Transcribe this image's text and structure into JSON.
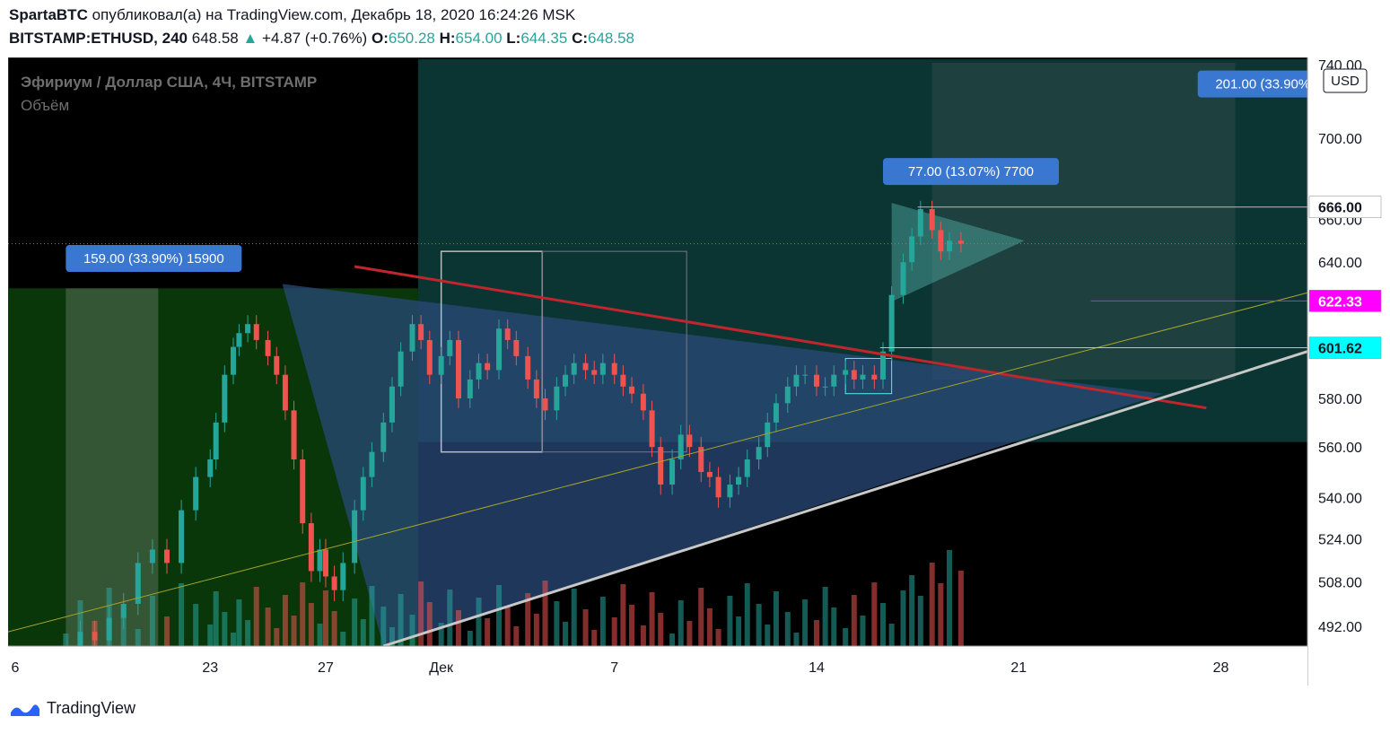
{
  "header": {
    "author": "SpartaBTC",
    "published_text": "опубликовал(а) на TradingView.com, Декабрь 18, 2020 16:24:26 MSK",
    "symbol": "BITSTAMP:ETHUSD, 240",
    "last": "648.58",
    "change_arrow": "▲",
    "change": "+4.87 (+0.76%)",
    "o_label": "O:",
    "o_value": "650.28",
    "h_label": "H:",
    "h_value": "654.00",
    "l_label": "L:",
    "l_value": "644.35",
    "c_label": "C:",
    "c_value": "648.58"
  },
  "legend": {
    "title": "Эфириум / Доллар США, 4Ч, BITSTAMP",
    "volume": "Объём"
  },
  "currency_label": "USD",
  "price_badges": [
    {
      "text": "666.00",
      "value": 666.0,
      "bg": "#ffffff",
      "fg": "#131722"
    },
    {
      "text": "622.33",
      "value": 622.33,
      "bg": "#ff00ff",
      "fg": "#ffffff"
    },
    {
      "text": "601.62",
      "value": 601.62,
      "bg": "#00ffff",
      "fg": "#131722"
    }
  ],
  "measure_labels": [
    {
      "text": "159.00 (33.90%) 15900"
    },
    {
      "text": "77.00 (13.07%) 7700"
    },
    {
      "text": "201.00 (33.90%) 20100"
    }
  ],
  "colors": {
    "background": "#000000",
    "up": "#26a69a",
    "down": "#ef5350",
    "label_bg": "#3a77d1",
    "trend_red": "#c0262d",
    "trend_white": "#c8c8c8",
    "triangle": "#2a4a7a"
  },
  "footer": {
    "brand": "TradingView"
  },
  "chart_data": {
    "type": "candlestick",
    "title": "Эфириум / Доллар США, 4Ч, BITSTAMP",
    "y_ticks": [
      "700.00",
      "660.00",
      "640.00",
      "580.00",
      "560.00",
      "540.00",
      "524.00",
      "508.00",
      "492.00"
    ],
    "y_tick_values": [
      700,
      660,
      640,
      580,
      560,
      540,
      524,
      508,
      492
    ],
    "y_top_partial": "740.00",
    "x_ticks": [
      "6",
      "23",
      "27",
      "Дек",
      "7",
      "14",
      "21",
      "28"
    ],
    "x_tick_days": [
      16,
      23,
      27,
      31,
      37,
      44,
      51,
      58
    ],
    "x_axis_note": "days from Nov 1, 2020; Дек = Dec 1",
    "y_scale": "log",
    "ylim": [
      485,
      742
    ],
    "xlim": [
      16,
      61
    ],
    "grid": false,
    "last_price": 648.58,
    "series_close": [
      [
        18.0,
        478
      ],
      [
        18.5,
        490
      ],
      [
        19.0,
        487
      ],
      [
        19.5,
        495
      ],
      [
        20.0,
        500
      ],
      [
        20.5,
        515
      ],
      [
        21.0,
        520
      ],
      [
        21.5,
        515
      ],
      [
        22.0,
        535
      ],
      [
        22.5,
        548
      ],
      [
        23.0,
        555
      ],
      [
        23.2,
        570
      ],
      [
        23.5,
        590
      ],
      [
        23.8,
        602
      ],
      [
        24.0,
        608
      ],
      [
        24.3,
        612
      ],
      [
        24.6,
        605
      ],
      [
        25.0,
        598
      ],
      [
        25.3,
        590
      ],
      [
        25.6,
        575
      ],
      [
        25.9,
        555
      ],
      [
        26.2,
        530
      ],
      [
        26.5,
        512
      ],
      [
        26.8,
        520
      ],
      [
        27.0,
        510
      ],
      [
        27.3,
        505
      ],
      [
        27.6,
        515
      ],
      [
        28.0,
        535
      ],
      [
        28.3,
        548
      ],
      [
        28.6,
        558
      ],
      [
        29.0,
        570
      ],
      [
        29.3,
        585
      ],
      [
        29.6,
        600
      ],
      [
        30.0,
        612
      ],
      [
        30.3,
        605
      ],
      [
        30.6,
        590
      ],
      [
        31.0,
        598
      ],
      [
        31.3,
        605
      ],
      [
        31.6,
        580
      ],
      [
        32.0,
        588
      ],
      [
        32.3,
        595
      ],
      [
        32.6,
        592
      ],
      [
        33.0,
        610
      ],
      [
        33.3,
        605
      ],
      [
        33.6,
        598
      ],
      [
        34.0,
        588
      ],
      [
        34.3,
        580
      ],
      [
        34.6,
        575
      ],
      [
        35.0,
        585
      ],
      [
        35.3,
        590
      ],
      [
        35.6,
        595
      ],
      [
        36.0,
        592
      ],
      [
        36.3,
        590
      ],
      [
        36.6,
        595
      ],
      [
        37.0,
        590
      ],
      [
        37.3,
        585
      ],
      [
        37.6,
        582
      ],
      [
        38.0,
        575
      ],
      [
        38.3,
        560
      ],
      [
        38.6,
        545
      ],
      [
        39.0,
        555
      ],
      [
        39.3,
        565
      ],
      [
        39.6,
        560
      ],
      [
        40.0,
        550
      ],
      [
        40.3,
        548
      ],
      [
        40.6,
        540
      ],
      [
        41.0,
        545
      ],
      [
        41.3,
        548
      ],
      [
        41.6,
        555
      ],
      [
        42.0,
        560
      ],
      [
        42.3,
        570
      ],
      [
        42.6,
        578
      ],
      [
        43.0,
        585
      ],
      [
        43.3,
        590
      ],
      [
        43.6,
        590
      ],
      [
        44.0,
        585
      ],
      [
        44.3,
        585
      ],
      [
        44.6,
        590
      ],
      [
        45.0,
        592
      ],
      [
        45.3,
        588
      ],
      [
        45.6,
        590
      ],
      [
        46.0,
        588
      ],
      [
        46.3,
        600
      ],
      [
        46.6,
        625
      ],
      [
        47.0,
        640
      ],
      [
        47.3,
        652
      ],
      [
        47.6,
        665
      ],
      [
        48.0,
        655
      ],
      [
        48.3,
        645
      ],
      [
        48.6,
        650
      ],
      [
        49.0,
        648.58
      ]
    ],
    "volume_note": "volume histogram drawn at bottom",
    "drawings": [
      {
        "kind": "trendline",
        "color": "red",
        "from": [
          28.0,
          638
        ],
        "to": [
          57.5,
          576
        ]
      },
      {
        "kind": "trendline",
        "color": "white",
        "from": [
          29.0,
          485
        ],
        "to": [
          61.0,
          600
        ]
      },
      {
        "kind": "trendline",
        "color": "yellow",
        "from": [
          16.0,
          490
        ],
        "to": [
          61.0,
          626
        ]
      },
      {
        "kind": "hline",
        "price": 622.33,
        "color": "magenta"
      },
      {
        "kind": "hline",
        "price": 601.62,
        "color": "cyan"
      },
      {
        "kind": "hline",
        "price": 666.0,
        "color": "white"
      }
    ]
  }
}
